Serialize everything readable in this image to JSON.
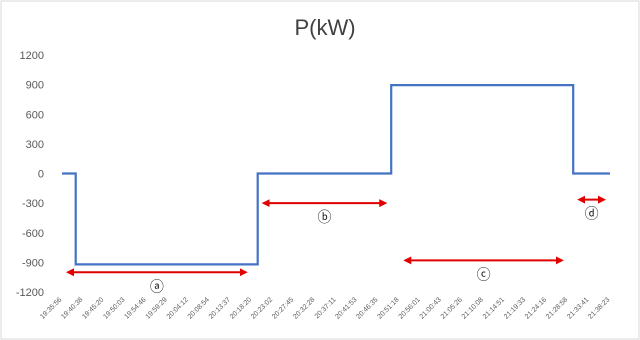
{
  "chart_data": {
    "type": "line",
    "title": "P(kW)",
    "xlabel": "",
    "ylabel": "",
    "ylim": [
      -1200,
      1200
    ],
    "yticks": [
      1200,
      900,
      600,
      300,
      0,
      -300,
      -600,
      -900,
      -1200
    ],
    "grid": false,
    "legend": "none",
    "x_tick_labels": [
      "19:35:56",
      "19:40:38",
      "19:45:20",
      "19:50:03",
      "19:54:46",
      "19:59:29",
      "20:04:12",
      "20:08:54",
      "20:13:37",
      "20:18:20",
      "20:23:02",
      "20:27:45",
      "20:32:28",
      "20:37:11",
      "20:41:53",
      "20:46:35",
      "20:51:18",
      "20:56:01",
      "21:00:43",
      "21:05:26",
      "21:10:08",
      "21:14:51",
      "21:19:33",
      "21:24:16",
      "21:28:58",
      "21:33:41",
      "21:38:23"
    ],
    "series": [
      {
        "color": "#4472c4",
        "points": [
          {
            "x": "19:35:56",
            "y": 0
          },
          {
            "x": "19:39:00",
            "y": 0
          },
          {
            "x": "19:39:00",
            "y": -920
          },
          {
            "x": "20:19:40",
            "y": -920
          },
          {
            "x": "20:19:40",
            "y": 0
          },
          {
            "x": "20:49:30",
            "y": 0
          },
          {
            "x": "20:49:30",
            "y": 895
          },
          {
            "x": "21:30:10",
            "y": 895
          },
          {
            "x": "21:30:10",
            "y": 0
          },
          {
            "x": "21:38:23",
            "y": 0
          }
        ]
      }
    ],
    "annotations": [
      {
        "label": "ⓐ",
        "from": "19:35:56",
        "to": "20:18:20",
        "y": -1000
      },
      {
        "label": "ⓑ",
        "from": "20:19:40",
        "to": "20:49:30",
        "y": -300
      },
      {
        "label": "ⓒ",
        "from": "20:51:18",
        "to": "21:28:58",
        "y": -880
      },
      {
        "label": "ⓓ",
        "from": "21:30:10",
        "to": "21:38:23",
        "y": -265
      }
    ],
    "colors": {
      "line": "#4472c4",
      "arrow": "#e00000"
    }
  }
}
